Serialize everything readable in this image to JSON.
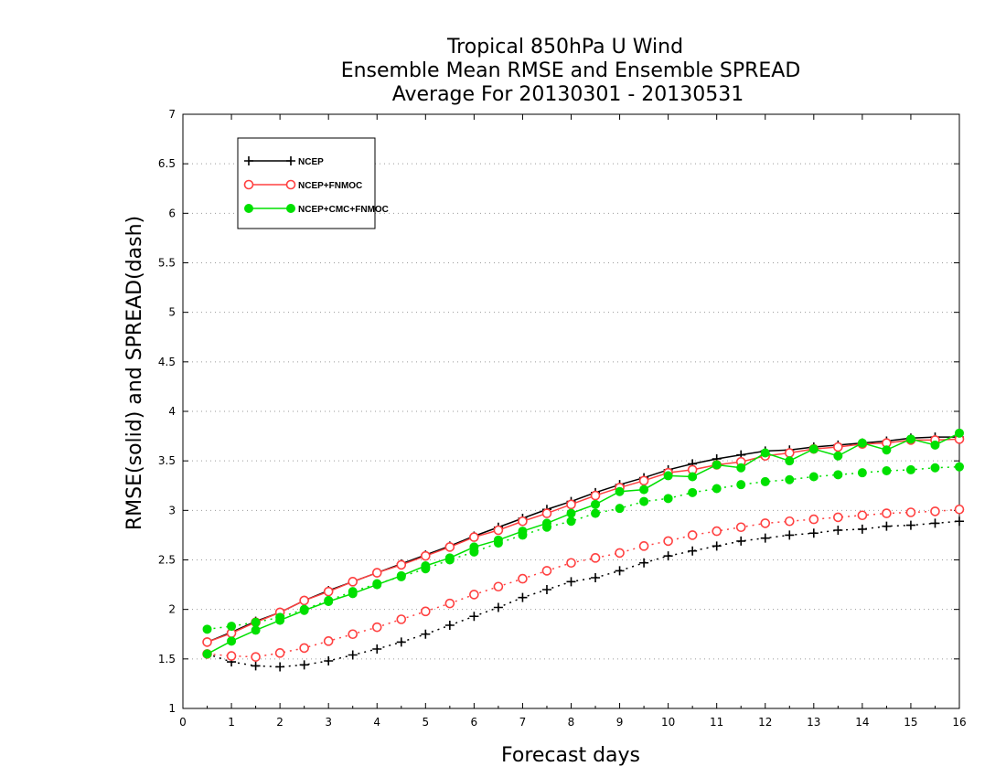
{
  "chart_data": {
    "type": "line",
    "title": [
      "Tropical 850hPa U Wind",
      "Ensemble Mean RMSE and Ensemble SPREAD",
      "Average For 20130301 - 20130531"
    ],
    "xlabel": "Forecast days",
    "ylabel": "RMSE(solid) and SPREAD(dash)",
    "xlim": [
      0,
      16
    ],
    "ylim": [
      1,
      7
    ],
    "xticks": [
      "0",
      "1",
      "2",
      "3",
      "4",
      "5",
      "6",
      "7",
      "8",
      "9",
      "10",
      "11",
      "12",
      "13",
      "14",
      "15",
      "16"
    ],
    "yticks": [
      "1",
      "1.5",
      "2",
      "2.5",
      "3",
      "3.5",
      "4",
      "4.5",
      "5",
      "5.5",
      "6",
      "6.5",
      "7"
    ],
    "grid": "horizontal dotted",
    "legend_position": "top-left",
    "x": [
      0.5,
      1,
      1.5,
      2,
      2.5,
      3,
      3.5,
      4,
      4.5,
      5,
      5.5,
      6,
      6.5,
      7,
      7.5,
      8,
      8.5,
      9,
      9.5,
      10,
      10.5,
      11,
      11.5,
      12,
      12.5,
      13,
      13.5,
      14,
      14.5,
      15,
      15.5,
      16
    ],
    "series": [
      {
        "name": "NCEP",
        "color": "#000000",
        "marker": "plus",
        "rmse": [
          1.67,
          1.77,
          1.88,
          1.97,
          2.09,
          2.19,
          2.28,
          2.37,
          2.46,
          2.55,
          2.64,
          2.74,
          2.83,
          2.92,
          3.01,
          3.09,
          3.18,
          3.26,
          3.33,
          3.41,
          3.47,
          3.52,
          3.56,
          3.6,
          3.61,
          3.64,
          3.66,
          3.68,
          3.7,
          3.73,
          3.74,
          3.74
        ],
        "spread": [
          1.55,
          1.47,
          1.43,
          1.42,
          1.44,
          1.48,
          1.54,
          1.6,
          1.67,
          1.75,
          1.84,
          1.93,
          2.02,
          2.12,
          2.2,
          2.28,
          2.32,
          2.39,
          2.47,
          2.54,
          2.59,
          2.64,
          2.69,
          2.72,
          2.75,
          2.77,
          2.8,
          2.81,
          2.84,
          2.85,
          2.87,
          2.89
        ]
      },
      {
        "name": "NCEP+FNMOC",
        "color": "#ff4040",
        "marker": "open-circle",
        "rmse": [
          1.67,
          1.76,
          1.87,
          1.97,
          2.09,
          2.18,
          2.28,
          2.37,
          2.45,
          2.54,
          2.63,
          2.73,
          2.8,
          2.89,
          2.97,
          3.06,
          3.15,
          3.23,
          3.3,
          3.38,
          3.41,
          3.46,
          3.49,
          3.55,
          3.58,
          3.62,
          3.64,
          3.67,
          3.68,
          3.71,
          3.71,
          3.72
        ],
        "spread": [
          1.55,
          1.53,
          1.52,
          1.56,
          1.61,
          1.68,
          1.75,
          1.82,
          1.9,
          1.98,
          2.06,
          2.15,
          2.23,
          2.31,
          2.39,
          2.47,
          2.52,
          2.57,
          2.64,
          2.69,
          2.75,
          2.79,
          2.83,
          2.87,
          2.89,
          2.91,
          2.93,
          2.95,
          2.97,
          2.98,
          2.99,
          3.01
        ]
      },
      {
        "name": "NCEP+CMC+FNMOC",
        "color": "#00e000",
        "marker": "filled-circle",
        "rmse": [
          1.55,
          1.68,
          1.79,
          1.89,
          1.99,
          2.08,
          2.16,
          2.25,
          2.34,
          2.44,
          2.52,
          2.63,
          2.7,
          2.79,
          2.87,
          2.97,
          3.06,
          3.19,
          3.21,
          3.35,
          3.34,
          3.46,
          3.43,
          3.58,
          3.5,
          3.62,
          3.55,
          3.68,
          3.61,
          3.72,
          3.66,
          3.78
        ],
        "spread": [
          1.8,
          1.83,
          1.87,
          1.92,
          2.0,
          2.09,
          2.18,
          2.26,
          2.33,
          2.41,
          2.5,
          2.58,
          2.67,
          2.75,
          2.83,
          2.89,
          2.97,
          3.02,
          3.09,
          3.12,
          3.18,
          3.22,
          3.26,
          3.29,
          3.31,
          3.34,
          3.36,
          3.38,
          3.4,
          3.41,
          3.43,
          3.44
        ]
      }
    ]
  }
}
